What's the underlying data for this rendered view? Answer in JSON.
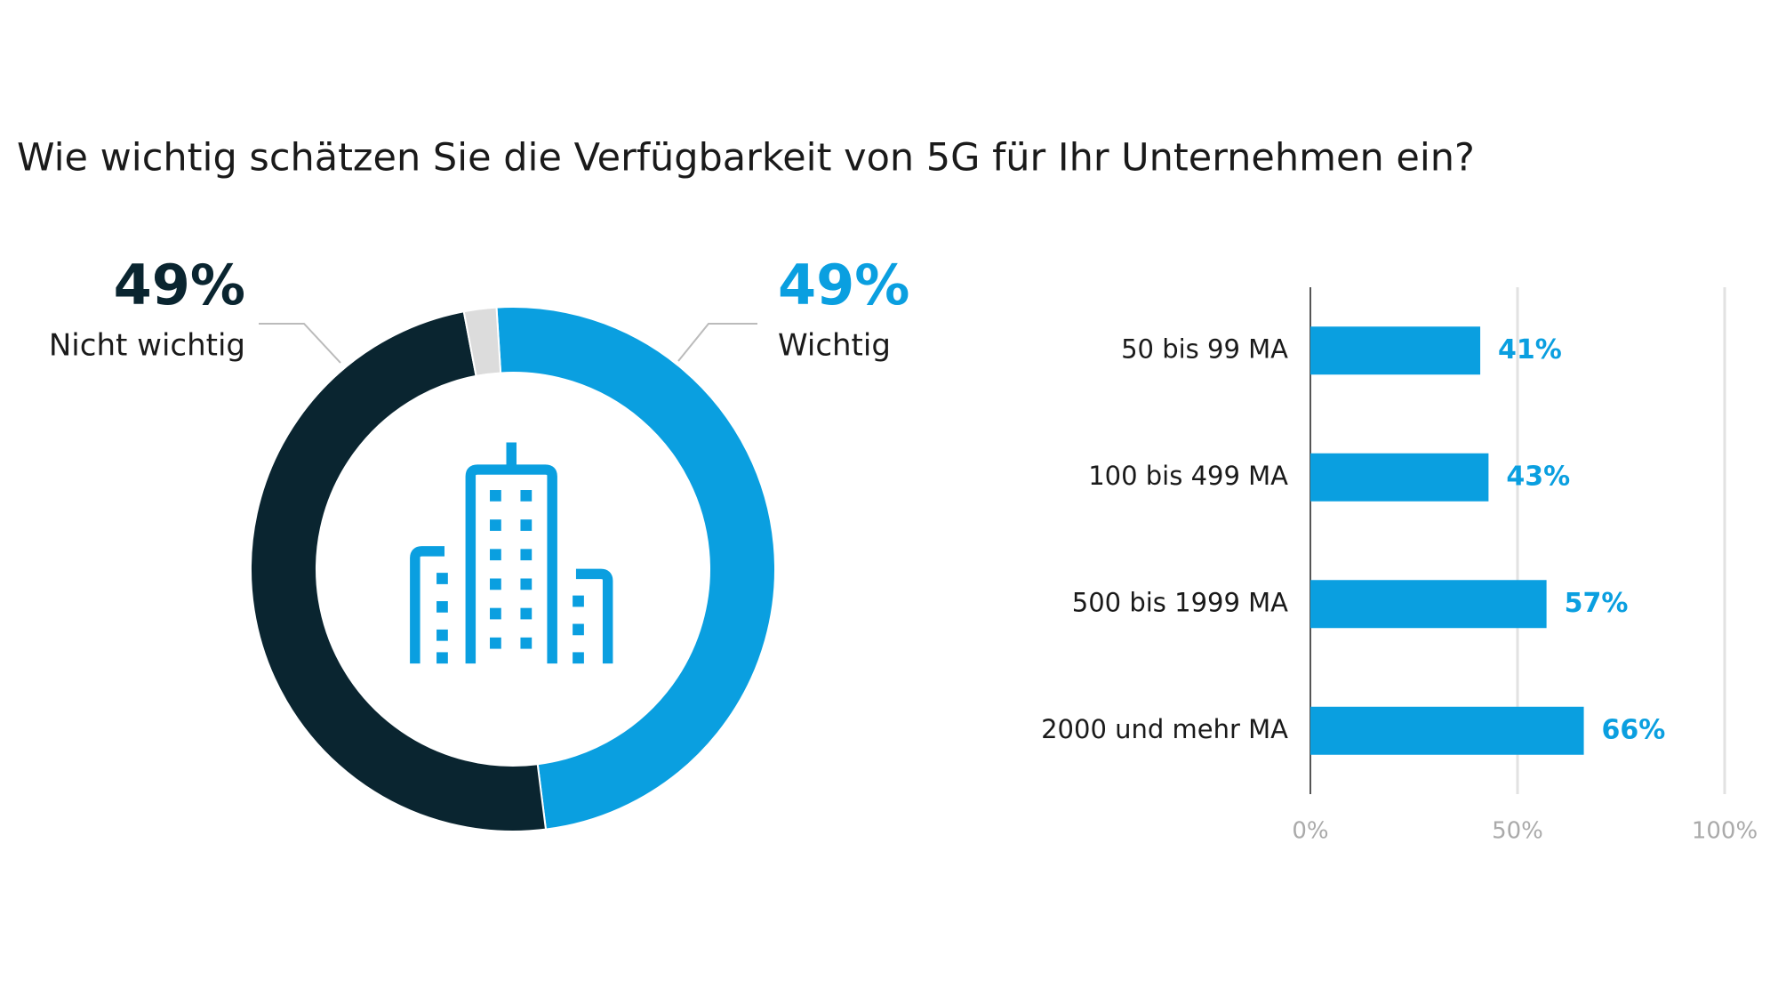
{
  "chart_data": [
    {
      "type": "pie",
      "title": "Wie wichtig schätzen Sie die Verfügbarkeit von 5G für Ihr Unternehmen ein?",
      "categories": [
        "Wichtig",
        "Nicht wichtig",
        null
      ],
      "values": [
        49,
        49,
        2
      ],
      "value_labels": [
        "49%",
        "49%",
        null
      ],
      "colors": [
        "#0a9fe0",
        "#0a2530",
        "#dcdcdc"
      ]
    },
    {
      "type": "hbar",
      "categories": [
        "50 bis 99 MA",
        "100 bis 499 MA",
        "500 bis 1999 MA",
        "2000 und mehr MA"
      ],
      "values": [
        41,
        43,
        57,
        66
      ],
      "value_labels": [
        "41%",
        "43%",
        "57%",
        "66%"
      ],
      "color": "#0a9fe0",
      "xlim": [
        0,
        100
      ],
      "xticks": [
        {
          "value": 0,
          "label": "0%"
        },
        {
          "value": 50,
          "label": "50%"
        },
        {
          "value": 100,
          "label": "100%"
        }
      ],
      "grid": true
    }
  ]
}
